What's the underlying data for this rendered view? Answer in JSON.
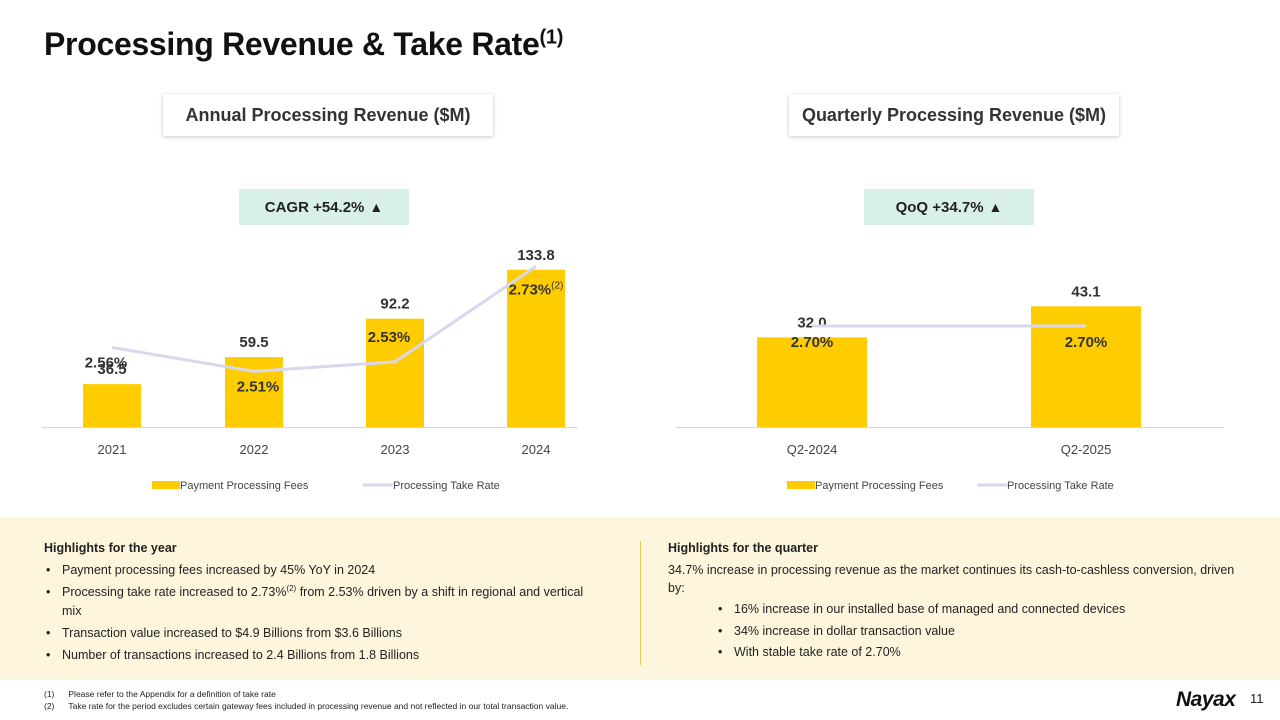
{
  "title": "Processing Revenue & Take Rate",
  "title_sup": "(1)",
  "colors": {
    "bar": "#ffcc00",
    "line": "#d9d7ee",
    "badge": "#d8f0e8",
    "highlight_bg": "#fdf6dd"
  },
  "chart_data": [
    {
      "type": "bar",
      "title": "Annual Processing Revenue ($M)",
      "badge": "CAGR +54.2%",
      "badge_icon": "▲",
      "categories": [
        "2021",
        "2022",
        "2023",
        "2024"
      ],
      "series": [
        {
          "name": "Payment Processing Fees",
          "type": "bar",
          "values": [
            36.5,
            59.5,
            92.2,
            133.8
          ],
          "labels": [
            "36.5",
            "59.5",
            "92.2",
            "133.8"
          ]
        },
        {
          "name": "Processing Take Rate",
          "type": "line",
          "values": [
            2.56,
            2.51,
            2.53,
            2.73
          ],
          "labels": [
            "2.56%",
            "2.51%",
            "2.53%",
            "2.73%"
          ],
          "label_sup": [
            "",
            "",
            "",
            "(2)"
          ]
        }
      ],
      "legend": "bottom"
    },
    {
      "type": "bar",
      "title": "Quarterly Processing Revenue ($M)",
      "badge": "QoQ +34.7%",
      "badge_icon": "▲",
      "categories": [
        "Q2-2024",
        "Q2-2025"
      ],
      "series": [
        {
          "name": "Payment Processing Fees",
          "type": "bar",
          "values": [
            32.0,
            43.1
          ],
          "labels": [
            "32.0",
            "43.1"
          ]
        },
        {
          "name": "Processing Take Rate",
          "type": "line",
          "values": [
            2.7,
            2.7
          ],
          "labels": [
            "2.70%",
            "2.70%"
          ],
          "label_sup": [
            "",
            ""
          ]
        }
      ],
      "legend": "bottom"
    }
  ],
  "highlights": {
    "year": {
      "heading": "Highlights for the year",
      "bullets": [
        "Payment processing fees increased by 45% YoY in 2024",
        "Processing take rate increased to 2.73%",
        "Transaction value increased to $4.9 Billions from $3.6 Billions",
        "Number of transactions increased to 2.4 Billions from 1.8 Billions"
      ],
      "bullet2_sup": "(2)",
      "bullet2_rest": " from 2.53% driven by a shift in regional and vertical mix"
    },
    "quarter": {
      "heading": "Highlights for the quarter",
      "intro": "34.7% increase in processing revenue as the market continues its cash-to-cashless conversion, driven by:",
      "bullets": [
        "16% increase in our installed base of managed and connected devices",
        "34% increase in dollar transaction value",
        "With stable take rate of 2.70%"
      ]
    }
  },
  "footnotes": [
    {
      "num": "(1)",
      "text": "Please refer to the Appendix for a definition of take rate"
    },
    {
      "num": "(2)",
      "text": "Take rate for the period excludes certain gateway fees included in processing revenue and not reflected in our total transaction value."
    }
  ],
  "logo": {
    "text": "Nayax"
  },
  "page_number": "11"
}
